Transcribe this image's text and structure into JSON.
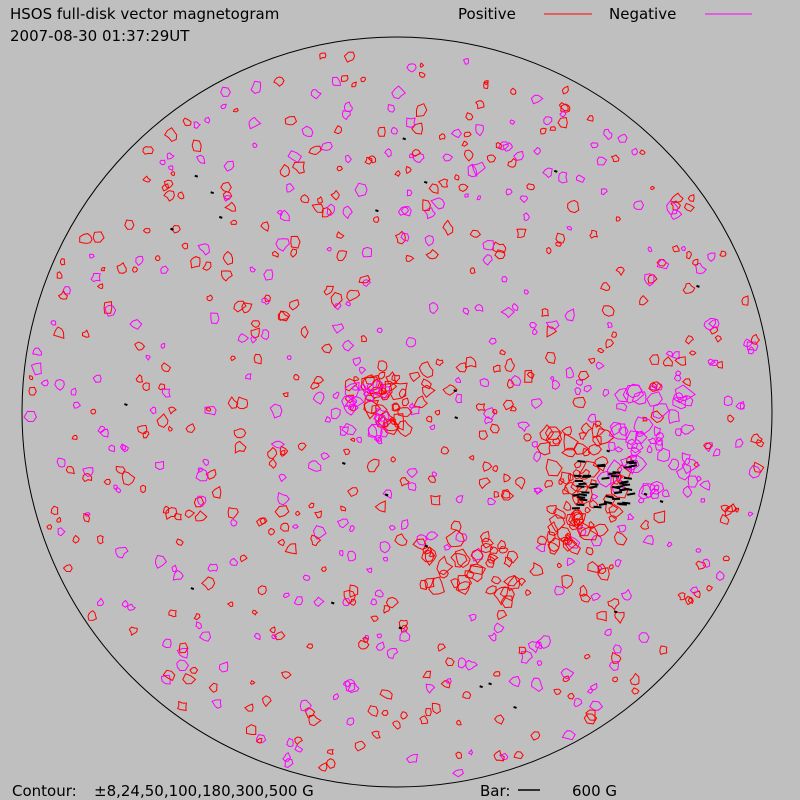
{
  "header": {
    "title": "HSOS full-disk vector magnetogram",
    "timestamp": "2007-08-30 01:37:29UT"
  },
  "legend": {
    "positive": "Positive",
    "negative": "Negative"
  },
  "footer": {
    "contour_label": "Contour:",
    "contour_levels": "±8,24,50,100,180,300,500 G",
    "bar_label": "Bar:",
    "bar_value": "600 G"
  }
}
